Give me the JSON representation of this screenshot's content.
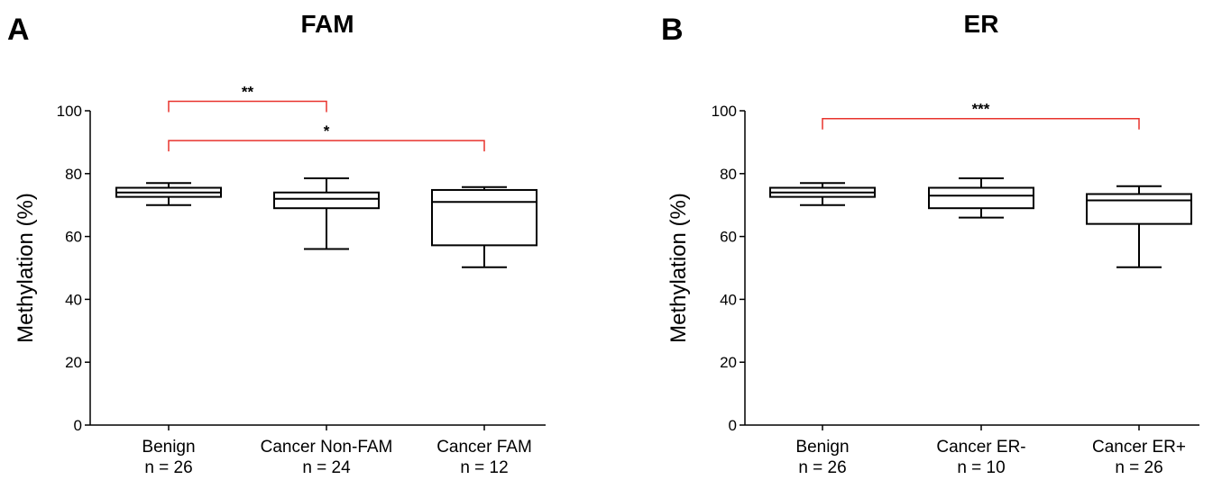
{
  "chart_data": [
    {
      "type": "box",
      "panel_letter": "A",
      "title": "FAM",
      "ylabel": "Methylation (%)",
      "xlabel": "",
      "ylim": [
        0,
        100
      ],
      "yticks": [
        0,
        20,
        40,
        60,
        80,
        100
      ],
      "grid": false,
      "categories": [
        {
          "name": "Benign",
          "n": "n = 26"
        },
        {
          "name": "Cancer Non-FAM",
          "n": "n = 24"
        },
        {
          "name": "Cancer FAM",
          "n": "n = 12"
        }
      ],
      "boxes": [
        {
          "min": 70,
          "q1": 72.6,
          "median": 74.0,
          "q3": 75.5,
          "max": 77
        },
        {
          "min": 56,
          "q1": 69.0,
          "median": 72.0,
          "q3": 74.0,
          "max": 78.5
        },
        {
          "min": 50.2,
          "q1": 57.2,
          "median": 71.0,
          "q3": 74.8,
          "max": 75.7
        }
      ],
      "significance": [
        {
          "from": 0,
          "to": 1,
          "label": "**",
          "y": 103
        },
        {
          "from": 0,
          "to": 2,
          "label": "*",
          "y": 90.5
        }
      ],
      "bracket_color": "#e8332d"
    },
    {
      "type": "box",
      "panel_letter": "B",
      "title": "ER",
      "ylabel": "Methylation (%)",
      "xlabel": "",
      "ylim": [
        0,
        100
      ],
      "yticks": [
        0,
        20,
        40,
        60,
        80,
        100
      ],
      "grid": false,
      "categories": [
        {
          "name": "Benign",
          "n": "n = 26"
        },
        {
          "name": "Cancer ER-",
          "n": "n = 10"
        },
        {
          "name": "Cancer ER+",
          "n": "n = 26"
        }
      ],
      "boxes": [
        {
          "min": 70,
          "q1": 72.6,
          "median": 74.0,
          "q3": 75.5,
          "max": 77
        },
        {
          "min": 66,
          "q1": 69.0,
          "median": 73.0,
          "q3": 75.5,
          "max": 78.5
        },
        {
          "min": 50.2,
          "q1": 64.0,
          "median": 71.5,
          "q3": 73.5,
          "max": 76
        }
      ],
      "significance": [
        {
          "from": 0,
          "to": 2,
          "label": "***",
          "y": 97.5
        }
      ],
      "bracket_color": "#e8332d"
    }
  ]
}
